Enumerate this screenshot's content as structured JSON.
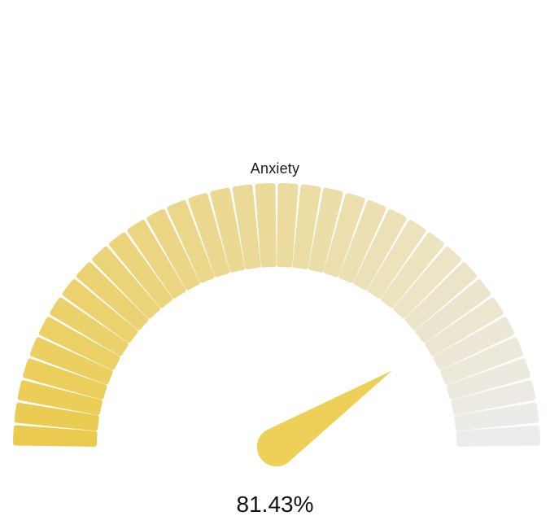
{
  "chart_data": {
    "type": "gauge",
    "title": "Anxiety",
    "value": 81.43,
    "value_label": "81.43%",
    "min": 0,
    "max": 100,
    "segments": 36
  },
  "colors": {
    "start": "#ebcb4f",
    "end": "#ececec",
    "needle": "#eecf57"
  }
}
